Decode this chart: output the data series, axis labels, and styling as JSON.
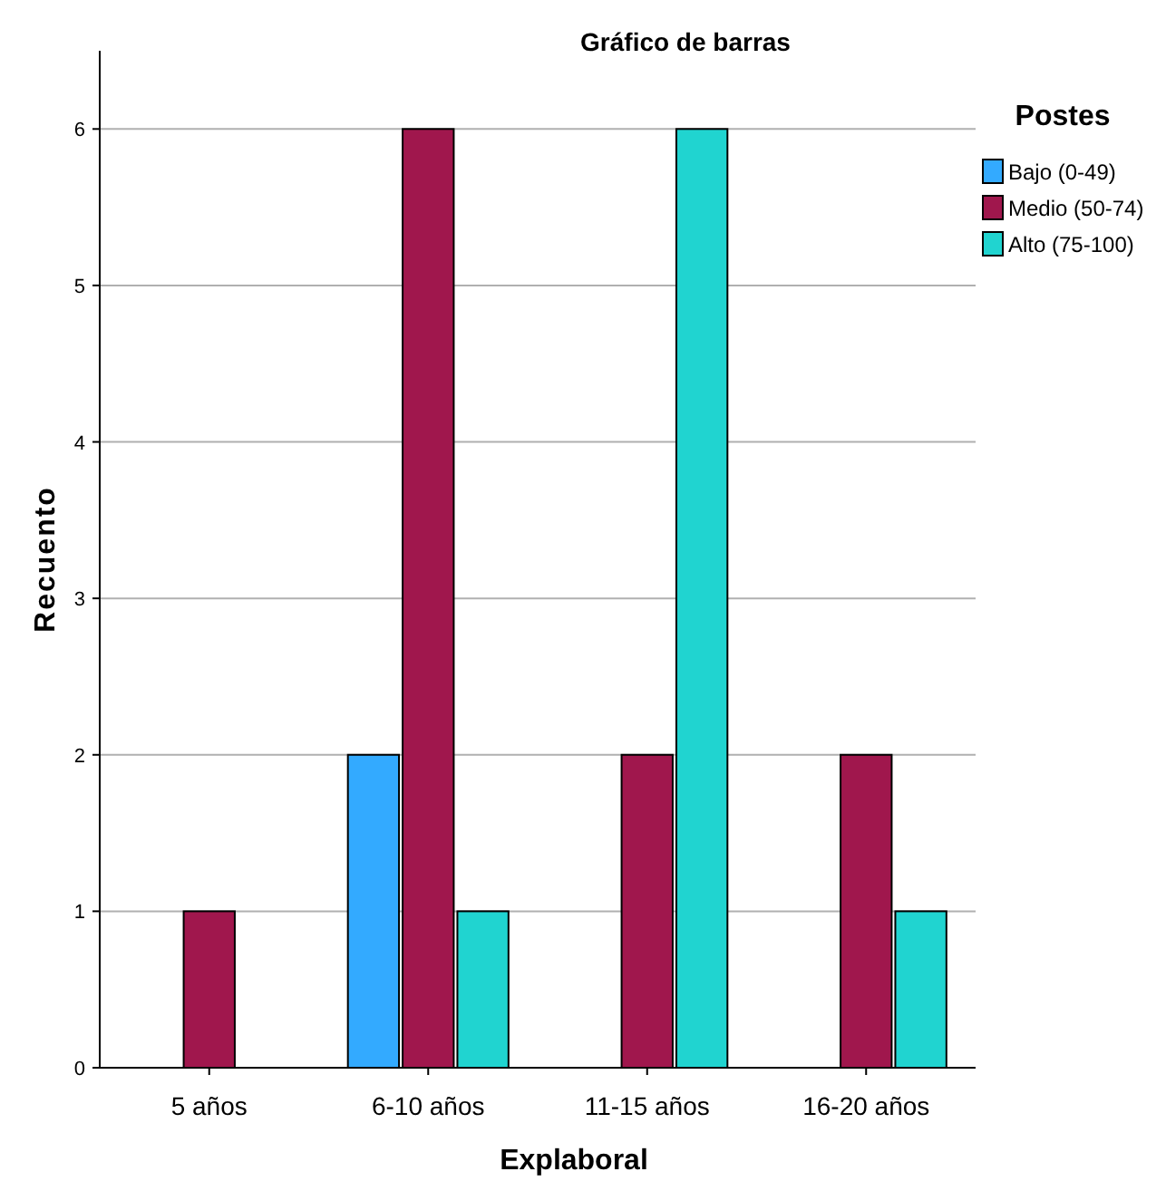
{
  "chart_data": {
    "type": "bar",
    "title": "Gráfico de barras",
    "xlabel": "Explaboral",
    "ylabel": "Recuento",
    "legend_title": "Postes",
    "categories": [
      "5 años",
      "6-10 años",
      "11-15 años",
      "16-20 años"
    ],
    "series": [
      {
        "name": "Bajo (0-49)",
        "color": "#33aaff",
        "values": [
          0,
          2,
          0,
          0
        ]
      },
      {
        "name": "Medio (50-74)",
        "color": "#a0174d",
        "values": [
          1,
          6,
          2,
          2
        ]
      },
      {
        "name": "Alto (75-100)",
        "color": "#20d4d0",
        "values": [
          0,
          1,
          6,
          1
        ]
      }
    ],
    "ylim": [
      0,
      6.5
    ],
    "yticks": [
      0,
      1,
      2,
      3,
      4,
      5,
      6
    ],
    "grid": "y",
    "legend": "right"
  }
}
